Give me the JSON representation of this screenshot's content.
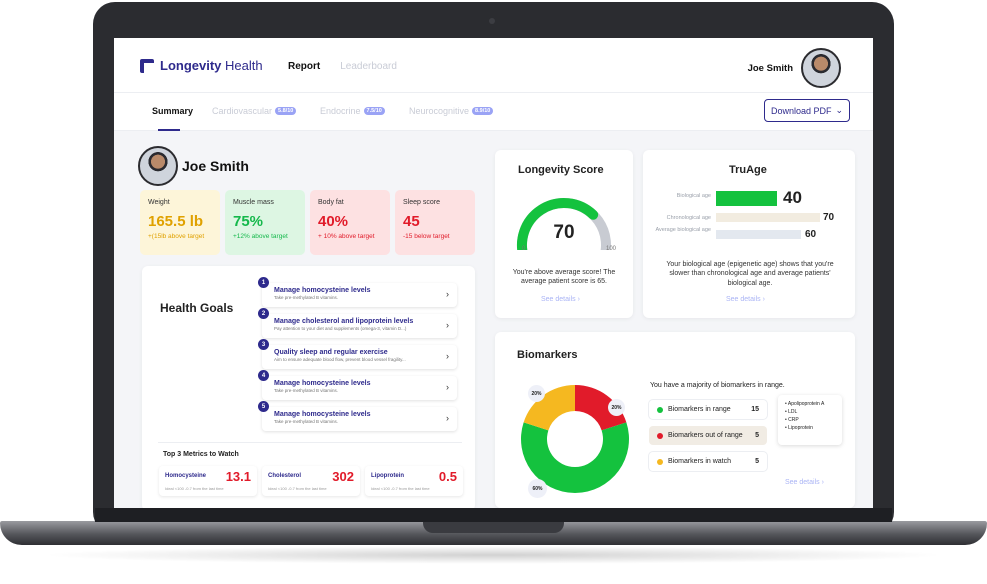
{
  "app": {
    "brand": "Longevity",
    "brand_suffix": "Health"
  },
  "nav": {
    "report": "Report",
    "leaderboard": "Leaderboard"
  },
  "user": {
    "name": "Joe Smith"
  },
  "tabs": [
    {
      "label": "Summary",
      "badge": ""
    },
    {
      "label": "Cardiovascular",
      "badge": "5.8/10"
    },
    {
      "label": "Endocrine",
      "badge": "7.5/10"
    },
    {
      "label": "Neurocognitive",
      "badge": "8.9/10"
    }
  ],
  "download": {
    "label": "Download PDF"
  },
  "profile": {
    "name": "Joe Smith"
  },
  "stats": [
    {
      "label": "Weight",
      "value": "165.5 lb",
      "note": "+(15lb above target",
      "color": "#e0a100",
      "bg": "#fdf5d9"
    },
    {
      "label": "Muscle mass",
      "value": "75%",
      "note": "+12% above target",
      "color": "#14b84b",
      "bg": "#ddf6e3"
    },
    {
      "label": "Body fat",
      "value": "40%",
      "note": "+ 10% above target",
      "color": "#e11b2a",
      "bg": "#fde1e2"
    },
    {
      "label": "Sleep score",
      "value": "45",
      "note": "-15 below target",
      "color": "#e11b2a",
      "bg": "#fde1e2"
    }
  ],
  "goals": {
    "title": "Health Goals",
    "items": [
      {
        "num": "1",
        "title": "Manage homocysteine levels",
        "sub": "Take pre-methylated B vitamins."
      },
      {
        "num": "2",
        "title": "Manage cholesterol and lipoprotein levels",
        "sub": "Pay attention to your diet and supplements (omega-3, vitamin D...)"
      },
      {
        "num": "3",
        "title": "Quality sleep and regular exercise",
        "sub": "Aim to ensure adequate blood flow, prevent blood vessel fragility..."
      },
      {
        "num": "4",
        "title": "Manage homocysteine levels",
        "sub": "Take pre-methylated B vitamins."
      },
      {
        "num": "5",
        "title": "Manage homocysteine levels",
        "sub": "Take pre-methylated B vitamins."
      }
    ]
  },
  "metrics": {
    "title": "Top 3 Metrics to Watch",
    "items": [
      {
        "name": "Homocysteine",
        "value": "13.1",
        "ideal": "Ideal <100",
        "change": "-0.7 from the last time"
      },
      {
        "name": "Cholesterol",
        "value": "302",
        "ideal": "Ideal <100",
        "change": "-0.7 from the last time"
      },
      {
        "name": "Lipoprotein",
        "value": "0.5",
        "ideal": "Ideal <100",
        "change": "-0.7 from the last time"
      }
    ]
  },
  "longevity": {
    "title": "Longevity Score",
    "score": "70",
    "score_value": 70,
    "min": "0",
    "max": "100",
    "text": "You're above average score! The average patient score is 65.",
    "see": "See details",
    "color": "#14c23e"
  },
  "truage": {
    "title": "TruAge",
    "rows": [
      {
        "label": "Biological age",
        "value": "40",
        "value_num": 40,
        "color": "#14c23e"
      },
      {
        "label": "Chronological age",
        "value": "70",
        "value_num": 70,
        "color": "#f2ece0"
      },
      {
        "label": "Average biological age",
        "value": "60",
        "value_num": 60,
        "color": "#e3e8ef"
      }
    ],
    "text": "Your biological age (epigenetic age) shows that you're slower than chronological age and average patients' biological age.",
    "see": "See details"
  },
  "biomarkers": {
    "title": "Biomarkers",
    "summary": "You have a majority of biomarkers in range.",
    "slices": [
      {
        "label": "60%",
        "value": 60,
        "color": "#14c23e"
      },
      {
        "label": "20%",
        "value": 20,
        "color": "#e11b2a"
      },
      {
        "label": "20%",
        "value": 20,
        "color": "#f5b820"
      }
    ],
    "rows": [
      {
        "label": "Biomarkers in range",
        "count": "15",
        "color": "#14c23e"
      },
      {
        "label": "Biomarkers out of range",
        "count": "5",
        "color": "#e11b2a"
      },
      {
        "label": "Biomarkers in watch",
        "count": "5",
        "color": "#f5b820"
      }
    ],
    "tooltip": [
      "• Apolipoprotein A",
      "• LDL",
      "• CRP",
      "• Lipoprotein"
    ],
    "see": "See details"
  }
}
